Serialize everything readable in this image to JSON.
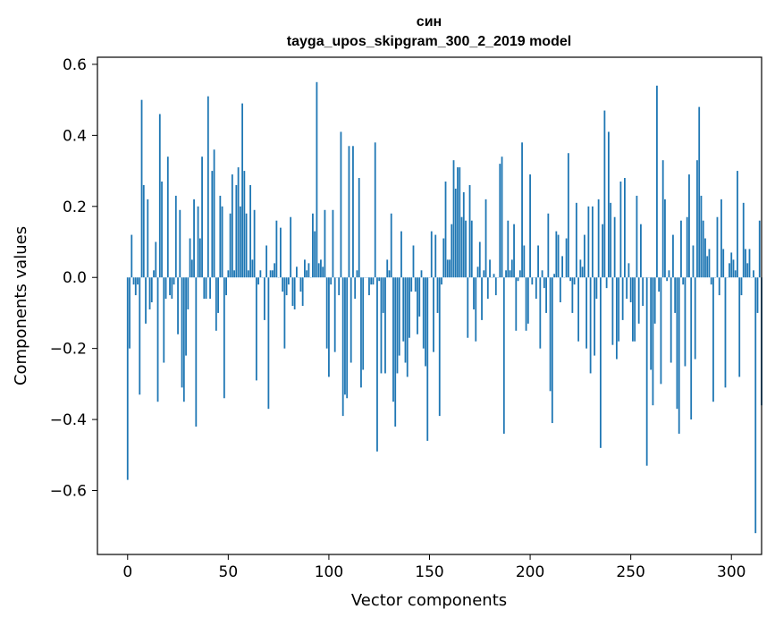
{
  "chart_data": {
    "type": "bar",
    "title": "син",
    "subtitle": "tayga_upos_skipgram_300_2_2019 model",
    "xlabel": "Vector components",
    "ylabel": "Components values",
    "xlim": [
      -15,
      315
    ],
    "ylim": [
      -0.78,
      0.62
    ],
    "xticks": [
      0,
      50,
      100,
      150,
      200,
      250,
      300
    ],
    "yticks": [
      -0.6,
      -0.4,
      -0.2,
      0.0,
      0.2,
      0.4,
      0.6
    ],
    "xtick_labels": [
      "0",
      "50",
      "100",
      "150",
      "200",
      "250",
      "300"
    ],
    "ytick_labels": [
      "−0.6",
      "−0.4",
      "−0.2",
      "0.0",
      "0.2",
      "0.4",
      "0.6"
    ],
    "bar_color": "#1f77b4",
    "grid": false,
    "values": [
      -0.57,
      -0.2,
      0.12,
      -0.02,
      -0.05,
      -0.02,
      -0.33,
      0.5,
      0.26,
      -0.13,
      0.22,
      -0.09,
      -0.07,
      0.02,
      0.1,
      -0.35,
      0.46,
      0.27,
      -0.24,
      -0.06,
      0.34,
      -0.05,
      -0.06,
      -0.02,
      0.23,
      -0.16,
      0.19,
      -0.31,
      -0.35,
      -0.22,
      -0.09,
      0.11,
      0.05,
      0.22,
      -0.42,
      0.2,
      0.11,
      0.34,
      -0.06,
      -0.06,
      0.51,
      -0.06,
      0.3,
      0.36,
      -0.15,
      -0.1,
      0.23,
      0.2,
      -0.34,
      -0.05,
      0.02,
      0.18,
      0.29,
      0.02,
      0.26,
      0.31,
      0.2,
      0.49,
      0.3,
      0.18,
      0.02,
      0.26,
      0.05,
      0.19,
      -0.29,
      -0.02,
      0.02,
      0.0,
      -0.12,
      0.09,
      -0.37,
      0.02,
      0.02,
      0.04,
      0.16,
      0.0,
      0.14,
      -0.04,
      -0.2,
      -0.05,
      -0.02,
      0.17,
      -0.08,
      -0.09,
      0.03,
      0.0,
      -0.04,
      -0.08,
      0.05,
      0.02,
      0.04,
      0.0,
      0.18,
      0.13,
      0.55,
      0.04,
      0.05,
      0.03,
      0.19,
      -0.2,
      -0.28,
      -0.02,
      0.19,
      -0.21,
      0.0,
      -0.05,
      0.41,
      -0.39,
      -0.33,
      -0.34,
      0.37,
      -0.24,
      0.37,
      -0.06,
      0.02,
      0.28,
      -0.31,
      -0.26,
      0.0,
      0.0,
      -0.05,
      -0.02,
      -0.02,
      0.38,
      -0.49,
      -0.01,
      -0.27,
      -0.1,
      -0.27,
      0.05,
      0.02,
      0.18,
      -0.35,
      -0.42,
      -0.27,
      -0.22,
      0.13,
      -0.18,
      -0.24,
      -0.28,
      -0.17,
      -0.04,
      0.09,
      -0.04,
      -0.16,
      -0.11,
      0.02,
      -0.2,
      -0.25,
      -0.46,
      0.0,
      0.13,
      -0.21,
      0.12,
      -0.1,
      -0.39,
      -0.02,
      0.11,
      0.27,
      0.05,
      0.05,
      0.15,
      0.33,
      0.25,
      0.31,
      0.31,
      0.17,
      0.24,
      0.16,
      -0.17,
      0.26,
      0.16,
      -0.09,
      -0.18,
      0.03,
      0.1,
      -0.12,
      0.02,
      0.22,
      -0.06,
      0.05,
      0.0,
      0.01,
      -0.05,
      0.0,
      0.32,
      0.34,
      -0.44,
      0.02,
      0.16,
      0.02,
      0.05,
      0.15,
      -0.15,
      -0.01,
      0.02,
      0.38,
      0.09,
      -0.15,
      -0.13,
      0.29,
      -0.02,
      0.0,
      -0.06,
      0.09,
      -0.2,
      0.02,
      -0.03,
      -0.1,
      0.18,
      -0.32,
      -0.41,
      0.01,
      0.13,
      0.12,
      -0.07,
      0.06,
      0.0,
      0.11,
      0.35,
      -0.01,
      -0.1,
      -0.02,
      0.21,
      -0.18,
      0.05,
      0.03,
      0.12,
      -0.2,
      0.2,
      -0.27,
      0.2,
      -0.22,
      -0.06,
      0.22,
      -0.48,
      0.15,
      0.47,
      -0.03,
      0.41,
      0.21,
      -0.19,
      0.17,
      -0.23,
      -0.18,
      0.27,
      -0.12,
      0.28,
      -0.06,
      0.04,
      -0.07,
      -0.18,
      -0.18,
      0.23,
      -0.13,
      0.15,
      -0.08,
      0.0,
      -0.53,
      0.0,
      -0.26,
      -0.36,
      -0.13,
      0.54,
      -0.04,
      -0.3,
      0.33,
      0.22,
      -0.01,
      0.02,
      -0.24,
      0.12,
      -0.1,
      -0.37,
      -0.44,
      0.16,
      -0.02,
      -0.25,
      0.17,
      0.29,
      -0.4,
      0.09,
      -0.23,
      0.33,
      0.48,
      0.23,
      0.16,
      0.11,
      0.06,
      0.08,
      -0.02,
      -0.35,
      0.0,
      0.17,
      -0.05,
      0.22,
      0.08,
      -0.31,
      0.0,
      0.04,
      0.07,
      0.05,
      0.02,
      0.3,
      -0.28,
      -0.05,
      0.21,
      0.08,
      0.04,
      0.08,
      0.0,
      0.02,
      -0.72,
      -0.1,
      0.16,
      -0.36
    ]
  }
}
